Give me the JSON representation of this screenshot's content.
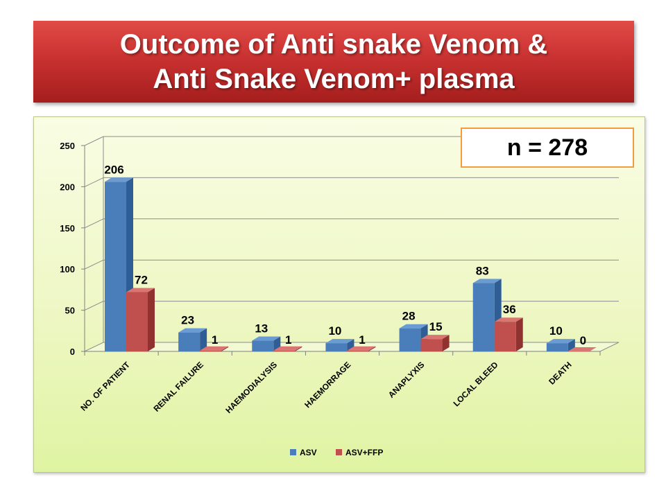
{
  "slide": {
    "title_line1": "Outcome of Anti snake Venom &",
    "title_line2": "Anti Snake Venom+ plasma",
    "n_label": "n = 278"
  },
  "colors": {
    "asv_front": "#4a7ebb",
    "asv_side": "#2f5d96",
    "asv_top": "#6b9bd3",
    "ffp_front": "#c0504d",
    "ffp_side": "#8f3230",
    "ffp_top": "#d97672",
    "n_box_border": "#f29b40"
  },
  "chart_data": {
    "type": "bar",
    "title": "",
    "xlabel": "",
    "ylabel": "",
    "ylim": [
      0,
      250
    ],
    "yticks": [
      0,
      50,
      100,
      150,
      200,
      250
    ],
    "categories": [
      "NO. OF PATIENT",
      "RENAL FAILURE",
      "HAEMODIALYSIS",
      "HAEMORRAGE",
      "ANAPLYXIS",
      "LOCAL BLEED",
      "DEATH"
    ],
    "series": [
      {
        "name": "ASV",
        "values": [
          206,
          23,
          13,
          10,
          28,
          83,
          10
        ]
      },
      {
        "name": "ASV+FFP",
        "values": [
          72,
          1,
          1,
          1,
          15,
          36,
          0
        ]
      }
    ],
    "legend_position": "bottom",
    "grid": true
  }
}
